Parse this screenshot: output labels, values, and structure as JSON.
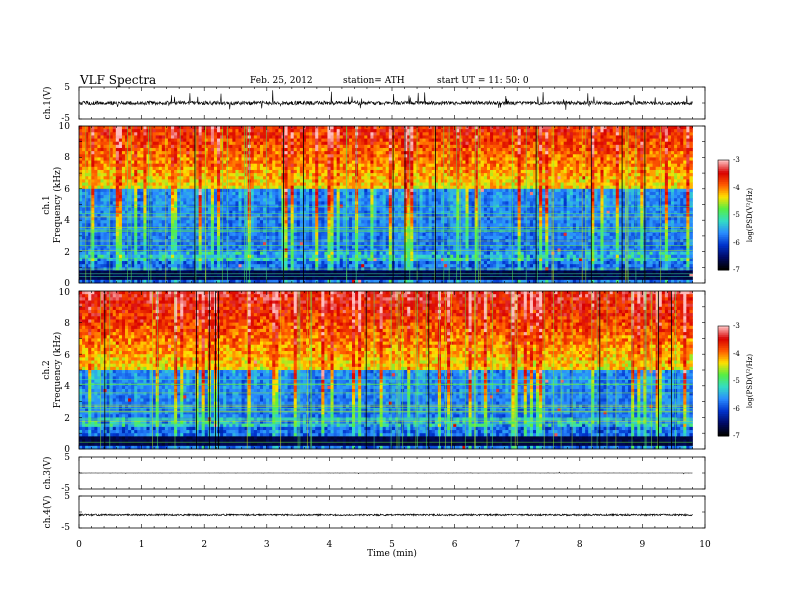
{
  "header": {
    "title": "VLF Spectra",
    "date": "Feb. 25, 2012",
    "station": "station= ATH",
    "start": "start  UT =   11: 50: 0"
  },
  "chart_data": [
    {
      "name": "ch1-waveform",
      "type": "line",
      "ylabel": "ch.1(V)",
      "ylim": [
        -5,
        5
      ],
      "yticks": [
        "5",
        "-5"
      ],
      "baseline": 0,
      "noise_amplitude": 0.6,
      "spike_amplitude": 2.5
    },
    {
      "name": "ch1-spectrogram",
      "type": "heatmap",
      "ylabel_line1": "ch.1",
      "ylabel_line2": "Frequency (kHz)",
      "ylim": [
        0,
        10
      ],
      "yticks": [
        "10",
        "8",
        "6",
        "4",
        "2",
        "0"
      ],
      "colorbar": {
        "title": "log(PSD(V²/Hz)",
        "range": [
          -7,
          -3
        ],
        "ticks": [
          "-3",
          "-4",
          "-5",
          "-6",
          "-7"
        ]
      },
      "dense_band_khz": [
        0,
        6
      ],
      "seed": 17
    },
    {
      "name": "ch2-spectrogram",
      "type": "heatmap",
      "ylabel_line1": "ch.2",
      "ylabel_line2": "Frequency (kHz)",
      "ylim": [
        0,
        10
      ],
      "yticks": [
        "10",
        "8",
        "6",
        "4",
        "2",
        "0"
      ],
      "colorbar": {
        "title": "log(PSD(V²/Hz)",
        "range": [
          -7,
          -3
        ],
        "ticks": [
          "-3",
          "-4",
          "-5",
          "-6",
          "-7"
        ]
      },
      "dense_band_khz": [
        0,
        5
      ],
      "seed": 41
    },
    {
      "name": "ch3-waveform",
      "type": "line",
      "ylabel": "ch.3(V)",
      "ylim": [
        -5,
        5
      ],
      "yticks": [
        "5",
        "-5"
      ],
      "baseline": 0,
      "noise_amplitude": 0.02,
      "spike_amplitude": 0.3
    },
    {
      "name": "ch4-waveform",
      "type": "line",
      "ylabel": "ch.4(V)",
      "ylim": [
        -5,
        5
      ],
      "yticks": [
        "5",
        "-5"
      ],
      "baseline": -0.9,
      "noise_amplitude": 0.25,
      "spike_amplitude": 0.3
    }
  ],
  "xaxis": {
    "label": "Time  (min)",
    "range": [
      0,
      10
    ],
    "ticks": [
      "0",
      "1",
      "2",
      "3",
      "4",
      "5",
      "6",
      "7",
      "8",
      "9",
      "10"
    ],
    "data_end": 9.8
  },
  "colors": {
    "colormap": [
      "#000000",
      "#000a66",
      "#0033cc",
      "#2a8cff",
      "#33ddc4",
      "#55ee44",
      "#ffe000",
      "#ff5a00",
      "#d80000",
      "#ffbcbc"
    ]
  }
}
